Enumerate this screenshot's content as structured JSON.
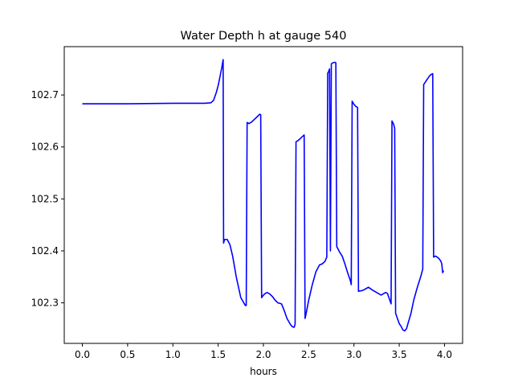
{
  "chart_data": {
    "type": "line",
    "title": "Water Depth h at gauge 540",
    "xlabel": "hours",
    "ylabel": "",
    "xlim": [
      -0.2,
      4.2
    ],
    "ylim": [
      102.222,
      102.793
    ],
    "grid": false,
    "x_ticks": [
      {
        "value": 0.0,
        "label": "0.0"
      },
      {
        "value": 0.5,
        "label": "0.5"
      },
      {
        "value": 1.0,
        "label": "1.0"
      },
      {
        "value": 1.5,
        "label": "1.5"
      },
      {
        "value": 2.0,
        "label": "2.0"
      },
      {
        "value": 2.5,
        "label": "2.5"
      },
      {
        "value": 3.0,
        "label": "3.0"
      },
      {
        "value": 3.5,
        "label": "3.5"
      },
      {
        "value": 4.0,
        "label": "4.0"
      }
    ],
    "y_ticks": [
      {
        "value": 102.3,
        "label": "102.3"
      },
      {
        "value": 102.4,
        "label": "102.4"
      },
      {
        "value": 102.5,
        "label": "102.5"
      },
      {
        "value": 102.6,
        "label": "102.6"
      },
      {
        "value": 102.7,
        "label": "102.7"
      }
    ],
    "series": [
      {
        "color": "#0000ff",
        "x": [
          0.0,
          0.5,
          1.0,
          1.2,
          1.35,
          1.42,
          1.45,
          1.48,
          1.5,
          1.52,
          1.54,
          1.555,
          1.56,
          1.57,
          1.6,
          1.63,
          1.66,
          1.7,
          1.75,
          1.8,
          1.81,
          1.82,
          1.84,
          1.87,
          1.9,
          1.93,
          1.96,
          1.97,
          1.98,
          2.0,
          2.02,
          2.04,
          2.07,
          2.1,
          2.13,
          2.16,
          2.2,
          2.23,
          2.26,
          2.3,
          2.32,
          2.34,
          2.35,
          2.36,
          2.38,
          2.4,
          2.43,
          2.45,
          2.46,
          2.47,
          2.5,
          2.54,
          2.58,
          2.62,
          2.65,
          2.68,
          2.7,
          2.71,
          2.72,
          2.73,
          2.74,
          2.75,
          2.77,
          2.79,
          2.8,
          2.81,
          2.82,
          2.84,
          2.87,
          2.9,
          2.93,
          2.96,
          2.97,
          2.98,
          3.0,
          3.02,
          3.04,
          3.05,
          3.06,
          3.08,
          3.11,
          3.14,
          3.16,
          3.2,
          3.25,
          3.3,
          3.35,
          3.37,
          3.39,
          3.41,
          3.42,
          3.44,
          3.45,
          3.46,
          3.48,
          3.5,
          3.52,
          3.54,
          3.56,
          3.58,
          3.6,
          3.63,
          3.66,
          3.7,
          3.74,
          3.76,
          3.77,
          3.8,
          3.82,
          3.84,
          3.86,
          3.87,
          3.88,
          3.9,
          3.92,
          3.94,
          3.96,
          3.97,
          3.98,
          3.99
        ],
        "y": [
          102.683,
          102.683,
          102.684,
          102.684,
          102.684,
          102.685,
          102.69,
          102.705,
          102.718,
          102.735,
          102.753,
          102.768,
          102.415,
          102.422,
          102.422,
          102.412,
          102.39,
          102.35,
          102.31,
          102.295,
          102.295,
          102.647,
          102.645,
          102.648,
          102.653,
          102.658,
          102.663,
          102.662,
          102.31,
          102.315,
          102.318,
          102.32,
          102.317,
          102.312,
          102.305,
          102.3,
          102.298,
          102.285,
          102.27,
          102.258,
          102.254,
          102.253,
          102.259,
          102.61,
          102.612,
          102.615,
          102.62,
          102.623,
          102.27,
          102.278,
          102.305,
          102.335,
          102.36,
          102.373,
          102.375,
          102.38,
          102.388,
          102.742,
          102.745,
          102.75,
          102.4,
          102.76,
          102.762,
          102.763,
          102.762,
          102.408,
          102.405,
          102.398,
          102.39,
          102.375,
          102.358,
          102.343,
          102.335,
          102.688,
          102.682,
          102.678,
          102.676,
          102.322,
          102.323,
          102.323,
          102.325,
          102.328,
          102.33,
          102.325,
          102.32,
          102.315,
          102.32,
          102.318,
          102.308,
          102.298,
          102.65,
          102.643,
          102.635,
          102.28,
          102.27,
          102.26,
          102.255,
          102.248,
          102.246,
          102.25,
          102.262,
          102.28,
          102.305,
          102.33,
          102.352,
          102.365,
          102.72,
          102.728,
          102.733,
          102.738,
          102.74,
          102.741,
          102.388,
          102.39,
          102.388,
          102.385,
          102.38,
          102.375,
          102.358,
          102.362
        ]
      }
    ]
  }
}
